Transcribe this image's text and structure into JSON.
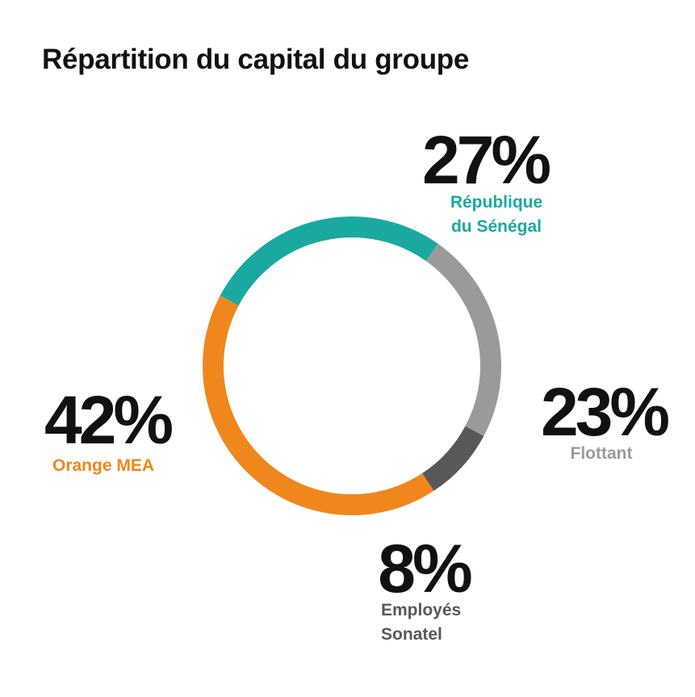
{
  "title": "Répartition du capital du groupe",
  "chart_data": {
    "type": "pie",
    "style": "donut",
    "title": "Répartition du capital du groupe",
    "unit": "%",
    "slices": [
      {
        "name": "République du Sénégal",
        "label_lines": [
          "République",
          "du Sénégal"
        ],
        "value": 27,
        "display": "27%",
        "color": "#1aa9a0"
      },
      {
        "name": "Flottant",
        "label_lines": [
          "Flottant"
        ],
        "value": 23,
        "display": "23%",
        "color": "#9a9a9c"
      },
      {
        "name": "Employés Sonatel",
        "label_lines": [
          "Employés",
          "Sonatel"
        ],
        "value": 8,
        "display": "8%",
        "color": "#58585a"
      },
      {
        "name": "Orange MEA",
        "label_lines": [
          "Orange MEA"
        ],
        "value": 42,
        "display": "42%",
        "color": "#f0871d"
      }
    ]
  }
}
